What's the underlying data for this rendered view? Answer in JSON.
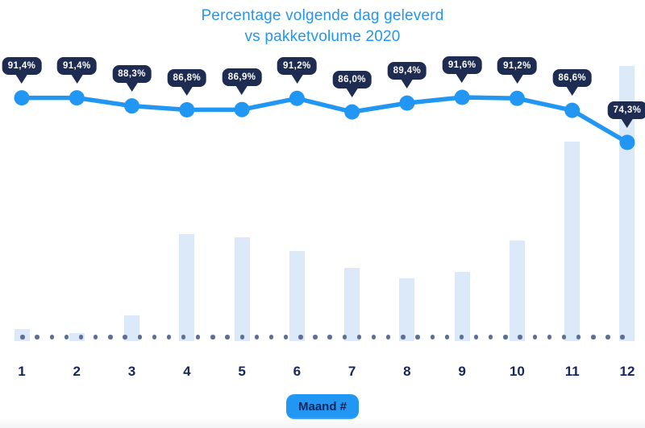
{
  "title": {
    "line1": "Percentage volgende dag geleverd",
    "line2": "vs pakketvolume 2020"
  },
  "x_axis": {
    "badge_label": "Maand #",
    "tick_labels": [
      "1",
      "2",
      "3",
      "4",
      "5",
      "6",
      "7",
      "8",
      "9",
      "10",
      "11",
      "12"
    ]
  },
  "chart_data": {
    "type": "combo-line-bar",
    "title": "Percentage volgende dag geleverd vs pakketvolume 2020",
    "xlabel": "Maand #",
    "categories": [
      1,
      2,
      3,
      4,
      5,
      6,
      7,
      8,
      9,
      10,
      11,
      12
    ],
    "series": [
      {
        "name": "Percentage volgende dag geleverd",
        "type": "line",
        "unit": "%",
        "values": [
          91.4,
          91.4,
          88.3,
          86.8,
          86.9,
          91.2,
          86.0,
          89.4,
          91.6,
          91.2,
          86.6,
          74.3
        ],
        "labels": [
          "91,4%",
          "91,4%",
          "88,3%",
          "86,8%",
          "86,9%",
          "91,2%",
          "86,0%",
          "89,4%",
          "91,6%",
          "91,2%",
          "86,6%",
          "74,3%"
        ],
        "color": "#2196f3"
      },
      {
        "name": "Pakketvolume 2020",
        "type": "bar",
        "unit": "relative-percent-of-max (no value axis shown)",
        "values": [
          4.4,
          2.9,
          9.4,
          38.9,
          37.7,
          32.7,
          26.6,
          22.8,
          25.1,
          36.5,
          72.5,
          100
        ],
        "color": "#dce9f8"
      }
    ],
    "legend": "none",
    "grid": "off",
    "baseline": "dotted",
    "y_axis_shown": false
  },
  "colors": {
    "accent_blue": "#2196f3",
    "navy": "#15265b",
    "tooltip_bg": "#1e2c52",
    "bar_fill": "#dce9f8",
    "dot_fill": "#5d6f96",
    "background": "#ffffff"
  }
}
